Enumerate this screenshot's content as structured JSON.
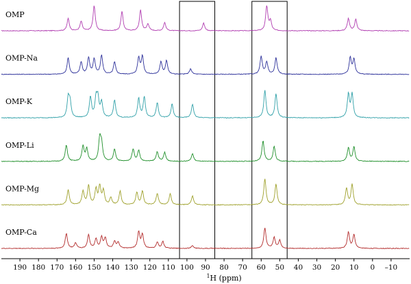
{
  "chart_data": {
    "type": "line",
    "title": "",
    "xlabel": "1H (ppm)",
    "xlabel_superscript": "1",
    "xlabel_rest": "H (ppm)",
    "xlim": [
      200,
      -20
    ],
    "x_reversed": true,
    "ticks": [
      190,
      180,
      170,
      160,
      150,
      140,
      130,
      120,
      110,
      100,
      90,
      80,
      70,
      60,
      50,
      40,
      30,
      20,
      10,
      0,
      -10
    ],
    "highlight_regions": [
      [
        104,
        85
      ],
      [
        65,
        46
      ]
    ],
    "series": [
      {
        "name": "OMP",
        "color": "#b03bb0",
        "peaks": [
          [
            164,
            0.45
          ],
          [
            157,
            0.35
          ],
          [
            150,
            0.92
          ],
          [
            135,
            0.7
          ],
          [
            125,
            0.75
          ],
          [
            121,
            0.25
          ],
          [
            112,
            0.3
          ],
          [
            91,
            0.28
          ],
          [
            57,
            0.9
          ],
          [
            55,
            0.35
          ],
          [
            13,
            0.45
          ],
          [
            9,
            0.42
          ]
        ]
      },
      {
        "name": "OMP-Na",
        "color": "#2b2f99",
        "peaks": [
          [
            164,
            0.6
          ],
          [
            157,
            0.45
          ],
          [
            153,
            0.6
          ],
          [
            150,
            0.55
          ],
          [
            146,
            0.7
          ],
          [
            139,
            0.45
          ],
          [
            126,
            0.6
          ],
          [
            124,
            0.65
          ],
          [
            114,
            0.45
          ],
          [
            111,
            0.5
          ],
          [
            98,
            0.2
          ],
          [
            60,
            0.65
          ],
          [
            57,
            0.45
          ],
          [
            52,
            0.6
          ],
          [
            12,
            0.6
          ],
          [
            10,
            0.55
          ]
        ]
      },
      {
        "name": "OMP-K",
        "color": "#2fa0a8",
        "peaks": [
          [
            164,
            0.7
          ],
          [
            163,
            0.55
          ],
          [
            152,
            0.75
          ],
          [
            149,
            0.65
          ],
          [
            148,
            0.65
          ],
          [
            146,
            0.55
          ],
          [
            139,
            0.65
          ],
          [
            126,
            0.7
          ],
          [
            123,
            0.75
          ],
          [
            116,
            0.55
          ],
          [
            108,
            0.5
          ],
          [
            97,
            0.5
          ],
          [
            58,
            1.0
          ],
          [
            52,
            0.88
          ],
          [
            13,
            0.85
          ],
          [
            11,
            0.85
          ]
        ]
      },
      {
        "name": "OMP-Li",
        "color": "#1f8f2a",
        "peaks": [
          [
            165,
            0.6
          ],
          [
            156,
            0.55
          ],
          [
            154,
            0.45
          ],
          [
            147,
            0.8
          ],
          [
            146,
            0.6
          ],
          [
            139,
            0.45
          ],
          [
            129,
            0.45
          ],
          [
            126,
            0.4
          ],
          [
            116,
            0.35
          ],
          [
            112,
            0.32
          ],
          [
            97,
            0.28
          ],
          [
            59,
            0.75
          ],
          [
            53,
            0.55
          ],
          [
            13,
            0.5
          ],
          [
            10,
            0.52
          ]
        ]
      },
      {
        "name": "OMP-Mg",
        "color": "#9ea02a",
        "peaks": [
          [
            164,
            0.55
          ],
          [
            156,
            0.5
          ],
          [
            153,
            0.7
          ],
          [
            149,
            0.55
          ],
          [
            147,
            0.65
          ],
          [
            145,
            0.5
          ],
          [
            141,
            0.25
          ],
          [
            136,
            0.5
          ],
          [
            127,
            0.45
          ],
          [
            124,
            0.5
          ],
          [
            116,
            0.42
          ],
          [
            109,
            0.4
          ],
          [
            97,
            0.32
          ],
          [
            58,
            0.95
          ],
          [
            52,
            0.75
          ],
          [
            14,
            0.6
          ],
          [
            11,
            0.75
          ]
        ]
      },
      {
        "name": "OMP-Ca",
        "color": "#b22a2a",
        "peaks": [
          [
            165,
            0.55
          ],
          [
            160,
            0.2
          ],
          [
            153,
            0.5
          ],
          [
            149,
            0.35
          ],
          [
            146,
            0.4
          ],
          [
            144,
            0.38
          ],
          [
            139,
            0.25
          ],
          [
            137,
            0.22
          ],
          [
            126,
            0.6
          ],
          [
            124,
            0.5
          ],
          [
            116,
            0.22
          ],
          [
            113,
            0.25
          ],
          [
            97,
            0.1
          ],
          [
            58,
            0.75
          ],
          [
            53,
            0.4
          ],
          [
            50,
            0.3
          ],
          [
            13,
            0.6
          ],
          [
            10,
            0.5
          ]
        ]
      }
    ]
  }
}
